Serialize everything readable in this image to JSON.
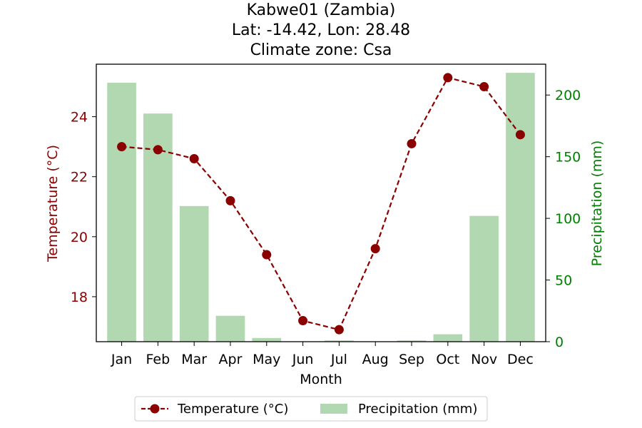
{
  "chart_data": {
    "type": "bar+line",
    "title_lines": [
      "Kabwe01 (Zambia)",
      "Lat: -14.42, Lon: 28.48",
      "Climate zone: Csa"
    ],
    "xlabel": "Month",
    "ylabel_left": "Temperature (°C)",
    "ylabel_right": "Precipitation (mm)",
    "categories": [
      "Jan",
      "Feb",
      "Mar",
      "Apr",
      "May",
      "Jun",
      "Jul",
      "Aug",
      "Sep",
      "Oct",
      "Nov",
      "Dec"
    ],
    "series": [
      {
        "name": "Temperature (°C)",
        "type": "line",
        "axis": "left",
        "values": [
          23.0,
          22.9,
          22.6,
          21.2,
          19.4,
          17.2,
          16.9,
          19.6,
          23.1,
          25.3,
          25.0,
          23.4
        ]
      },
      {
        "name": "Precipitation (mm)",
        "type": "bar",
        "axis": "right",
        "values": [
          210,
          185,
          110,
          21,
          3,
          0,
          1,
          0,
          1,
          6,
          102,
          218
        ]
      }
    ],
    "ylim_left": [
      16.5,
      25.75
    ],
    "yticks_left": [
      18,
      20,
      22,
      24
    ],
    "ylim_right": [
      0,
      225
    ],
    "yticks_right": [
      0,
      50,
      100,
      150,
      200
    ],
    "grid": false,
    "legend_position": "bottom-center",
    "colors": {
      "temperature_line": "#8b0000",
      "precipitation_bar": "#b2d8b2",
      "left_axis_text": "#8b0000",
      "right_axis_text": "#008000"
    }
  }
}
